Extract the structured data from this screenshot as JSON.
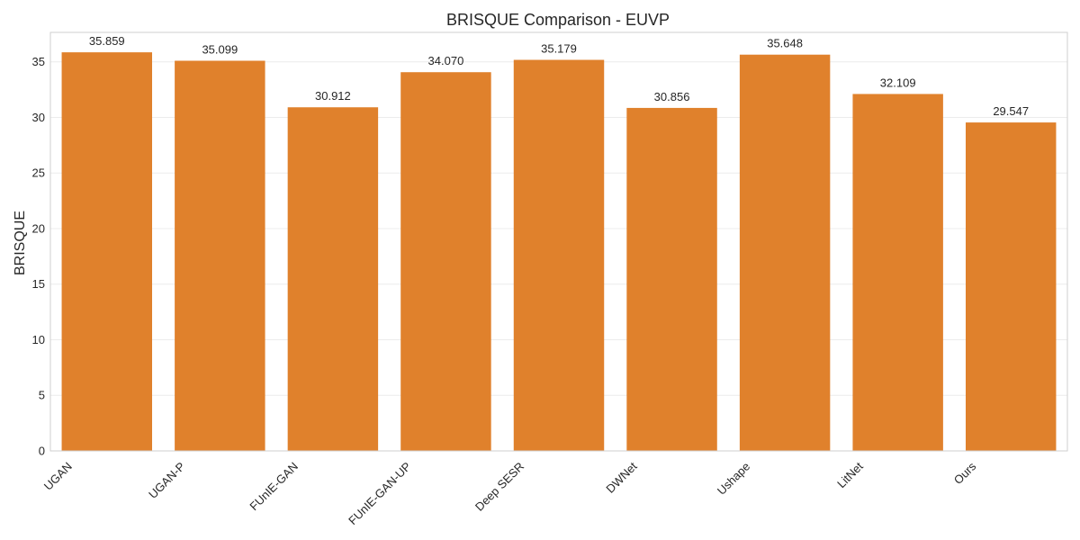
{
  "chart_data": {
    "type": "bar",
    "title": "BRISQUE Comparison - EUVP",
    "xlabel": "",
    "ylabel": "BRISQUE",
    "categories": [
      "UGAN",
      "UGAN-P",
      "FUnIE-GAN",
      "FUnIE-GAN-UP",
      "Deep SESR",
      "DWNet",
      "Ushape",
      "LitNet",
      "Ours"
    ],
    "values": [
      35.859,
      35.099,
      30.912,
      34.07,
      35.179,
      30.856,
      35.648,
      32.109,
      29.547
    ],
    "data_labels": [
      "35.859",
      "35.099",
      "30.912",
      "34.070",
      "35.179",
      "30.856",
      "35.648",
      "32.109",
      "29.547"
    ],
    "ylim": [
      0,
      37.65
    ],
    "yticks": [
      0,
      5,
      10,
      15,
      20,
      25,
      30,
      35
    ],
    "grid": true,
    "legend": "none",
    "bar_color": "#e0812c"
  }
}
